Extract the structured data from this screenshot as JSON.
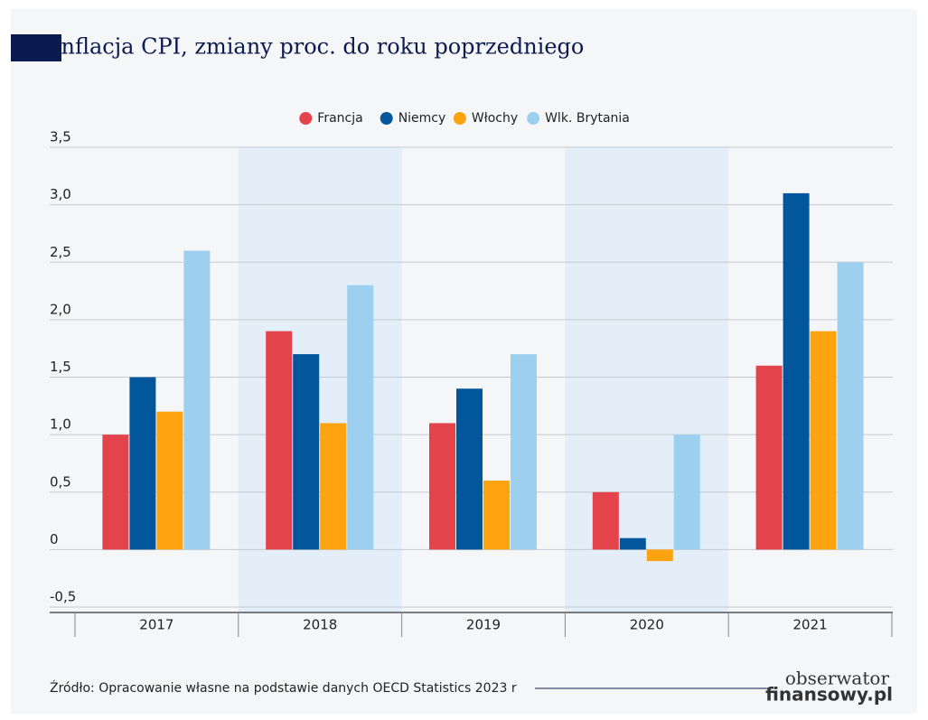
{
  "chart_data": {
    "type": "bar",
    "title": "Inflacja CPI, zmiany proc. do roku poprzedniego",
    "categories": [
      "2017",
      "2018",
      "2019",
      "2020",
      "2021"
    ],
    "series": [
      {
        "name": "Francja",
        "color": "#e3434b",
        "values": [
          1.0,
          1.9,
          1.1,
          0.5,
          1.6
        ]
      },
      {
        "name": "Niemcy",
        "color": "#02569b",
        "values": [
          1.5,
          1.7,
          1.4,
          0.1,
          3.1
        ]
      },
      {
        "name": "Włochy",
        "color": "#fca30f",
        "values": [
          1.2,
          1.1,
          0.6,
          -0.1,
          1.9
        ]
      },
      {
        "name": "Wlk. Brytania",
        "color": "#9dd0ee",
        "values": [
          2.6,
          2.3,
          1.7,
          1.0,
          2.5
        ]
      }
    ],
    "ylim": [
      -0.5,
      3.5
    ],
    "yticks": [
      {
        "value": -0.5,
        "label": "-0,5"
      },
      0,
      {
        "value": 0.5,
        "label": "0,5"
      },
      {
        "value": 1.0,
        "label": "1,0"
      },
      {
        "value": 1.5,
        "label": "1,5"
      },
      {
        "value": 2.0,
        "label": "2,0"
      },
      {
        "value": 2.5,
        "label": "2,5"
      },
      {
        "value": 3.0,
        "label": "3,0"
      },
      {
        "value": 3.5,
        "label": "3,5"
      }
    ],
    "grid": true,
    "legend": "top",
    "source": "Źródło: Opracowanie własne na podstawie danych OECD Statistics 2023 r",
    "logo": [
      "obserwator",
      "finansowy.pl"
    ]
  }
}
